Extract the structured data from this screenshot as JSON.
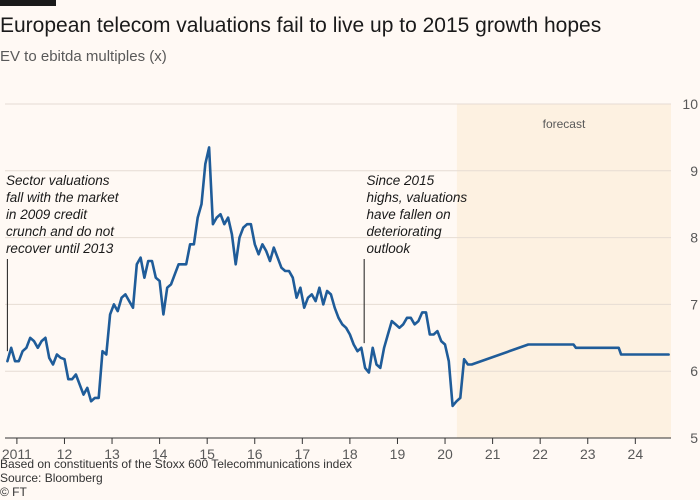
{
  "header": {
    "title": "European telecom valuations fail to live up to 2015 growth hopes",
    "subtitle": "EV to ebitda multiples (x)"
  },
  "footer": {
    "note": "Based on constituents of the Stoxx 600 Telecommunications index",
    "source": "Source: Bloomberg",
    "credit": "© FT"
  },
  "chart_data": {
    "type": "line",
    "title": "European telecom valuations fail to live up to 2015 growth hopes",
    "subtitle": "EV to ebitda multiples (x)",
    "xlabel": "",
    "ylabel": "",
    "xlim": [
      2010.75,
      2024.75
    ],
    "ylim": [
      5,
      10
    ],
    "y_ticks": [
      "5",
      "6",
      "7",
      "8",
      "9",
      "10"
    ],
    "y_axis_side": "right",
    "x_ticks": [
      {
        "value": 2011,
        "label": "2011"
      },
      {
        "value": 2012,
        "label": "12"
      },
      {
        "value": 2013,
        "label": "13"
      },
      {
        "value": 2014,
        "label": "14"
      },
      {
        "value": 2015,
        "label": "15"
      },
      {
        "value": 2016,
        "label": "16"
      },
      {
        "value": 2017,
        "label": "17"
      },
      {
        "value": 2018,
        "label": "18"
      },
      {
        "value": 2019,
        "label": "19"
      },
      {
        "value": 2020,
        "label": "20"
      },
      {
        "value": 2021,
        "label": "21"
      },
      {
        "value": 2022,
        "label": "22"
      },
      {
        "value": 2023,
        "label": "23"
      },
      {
        "value": 2024,
        "label": "24"
      }
    ],
    "grid": "horizontal",
    "forecast": {
      "start": 2020.25,
      "end": 2024.75,
      "label": "forecast",
      "color": "#fdf1e1"
    },
    "line_color": "#1f5c99",
    "series": [
      {
        "points": [
          [
            2010.8,
            6.15
          ],
          [
            2010.88,
            6.35
          ],
          [
            2010.96,
            6.15
          ],
          [
            2011.04,
            6.15
          ],
          [
            2011.12,
            6.3
          ],
          [
            2011.2,
            6.35
          ],
          [
            2011.28,
            6.5
          ],
          [
            2011.36,
            6.45
          ],
          [
            2011.44,
            6.35
          ],
          [
            2011.52,
            6.45
          ],
          [
            2011.6,
            6.5
          ],
          [
            2011.68,
            6.2
          ],
          [
            2011.76,
            6.1
          ],
          [
            2011.84,
            6.25
          ],
          [
            2011.92,
            6.2
          ],
          [
            2012.0,
            6.18
          ],
          [
            2012.08,
            5.88
          ],
          [
            2012.16,
            5.88
          ],
          [
            2012.24,
            5.95
          ],
          [
            2012.32,
            5.8
          ],
          [
            2012.4,
            5.65
          ],
          [
            2012.48,
            5.75
          ],
          [
            2012.56,
            5.55
          ],
          [
            2012.64,
            5.6
          ],
          [
            2012.72,
            5.6
          ],
          [
            2012.8,
            6.3
          ],
          [
            2012.88,
            6.25
          ],
          [
            2012.96,
            6.85
          ],
          [
            2013.04,
            7.0
          ],
          [
            2013.12,
            6.9
          ],
          [
            2013.2,
            7.1
          ],
          [
            2013.28,
            7.15
          ],
          [
            2013.36,
            7.05
          ],
          [
            2013.44,
            6.95
          ],
          [
            2013.52,
            7.6
          ],
          [
            2013.6,
            7.7
          ],
          [
            2013.68,
            7.4
          ],
          [
            2013.76,
            7.65
          ],
          [
            2013.84,
            7.65
          ],
          [
            2013.92,
            7.4
          ],
          [
            2014.0,
            7.35
          ],
          [
            2014.08,
            6.85
          ],
          [
            2014.16,
            7.25
          ],
          [
            2014.24,
            7.3
          ],
          [
            2014.32,
            7.45
          ],
          [
            2014.4,
            7.6
          ],
          [
            2014.48,
            7.6
          ],
          [
            2014.56,
            7.6
          ],
          [
            2014.64,
            7.9
          ],
          [
            2014.72,
            7.9
          ],
          [
            2014.8,
            8.3
          ],
          [
            2014.88,
            8.5
          ],
          [
            2014.96,
            9.1
          ],
          [
            2015.04,
            9.35
          ],
          [
            2015.12,
            8.2
          ],
          [
            2015.2,
            8.3
          ],
          [
            2015.28,
            8.35
          ],
          [
            2015.36,
            8.2
          ],
          [
            2015.44,
            8.3
          ],
          [
            2015.52,
            8.05
          ],
          [
            2015.6,
            7.6
          ],
          [
            2015.68,
            8.0
          ],
          [
            2015.76,
            8.15
          ],
          [
            2015.84,
            8.2
          ],
          [
            2015.92,
            8.2
          ],
          [
            2016.0,
            7.9
          ],
          [
            2016.08,
            7.75
          ],
          [
            2016.16,
            7.9
          ],
          [
            2016.24,
            7.8
          ],
          [
            2016.32,
            7.65
          ],
          [
            2016.4,
            7.85
          ],
          [
            2016.48,
            7.7
          ],
          [
            2016.56,
            7.55
          ],
          [
            2016.64,
            7.5
          ],
          [
            2016.72,
            7.5
          ],
          [
            2016.8,
            7.4
          ],
          [
            2016.88,
            7.1
          ],
          [
            2016.96,
            7.25
          ],
          [
            2017.04,
            6.95
          ],
          [
            2017.12,
            7.1
          ],
          [
            2017.2,
            7.15
          ],
          [
            2017.28,
            7.05
          ],
          [
            2017.36,
            7.25
          ],
          [
            2017.44,
            7.0
          ],
          [
            2017.52,
            7.2
          ],
          [
            2017.6,
            7.15
          ],
          [
            2017.68,
            6.95
          ],
          [
            2017.76,
            6.8
          ],
          [
            2017.84,
            6.7
          ],
          [
            2017.92,
            6.65
          ],
          [
            2018.0,
            6.55
          ],
          [
            2018.08,
            6.4
          ],
          [
            2018.16,
            6.3
          ],
          [
            2018.24,
            6.35
          ],
          [
            2018.32,
            6.05
          ],
          [
            2018.4,
            5.98
          ],
          [
            2018.48,
            6.35
          ],
          [
            2018.56,
            6.1
          ],
          [
            2018.64,
            6.05
          ],
          [
            2018.72,
            6.35
          ],
          [
            2018.8,
            6.55
          ],
          [
            2018.88,
            6.75
          ],
          [
            2018.96,
            6.7
          ],
          [
            2019.04,
            6.65
          ],
          [
            2019.12,
            6.7
          ],
          [
            2019.2,
            6.8
          ],
          [
            2019.28,
            6.8
          ],
          [
            2019.36,
            6.7
          ],
          [
            2019.44,
            6.75
          ],
          [
            2019.52,
            6.88
          ],
          [
            2019.6,
            6.88
          ],
          [
            2019.68,
            6.55
          ],
          [
            2019.76,
            6.55
          ],
          [
            2019.84,
            6.6
          ],
          [
            2019.92,
            6.45
          ],
          [
            2020.0,
            6.4
          ],
          [
            2020.08,
            6.15
          ],
          [
            2020.16,
            5.48
          ],
          [
            2020.24,
            5.55
          ],
          [
            2020.32,
            5.6
          ],
          [
            2020.4,
            6.18
          ],
          [
            2020.48,
            6.1
          ],
          [
            2020.56,
            6.1
          ],
          [
            2021.75,
            6.4
          ],
          [
            2022.7,
            6.4
          ],
          [
            2022.75,
            6.35
          ],
          [
            2023.65,
            6.35
          ],
          [
            2023.7,
            6.25
          ],
          [
            2024.7,
            6.25
          ]
        ]
      }
    ],
    "annotations": [
      {
        "lines": [
          "Sector valuations",
          "fall with the market",
          "in 2009 credit",
          "crunch and do not",
          "recover until 2013"
        ],
        "x": 2010.77,
        "anchor": "start",
        "pointer_x": 2010.8
      },
      {
        "lines": [
          "Since 2015",
          "highs, valuations",
          "have fallen on",
          "deteriorating",
          "outlook"
        ],
        "x": 2018.35,
        "anchor": "start",
        "pointer_x": 2018.3
      }
    ]
  }
}
